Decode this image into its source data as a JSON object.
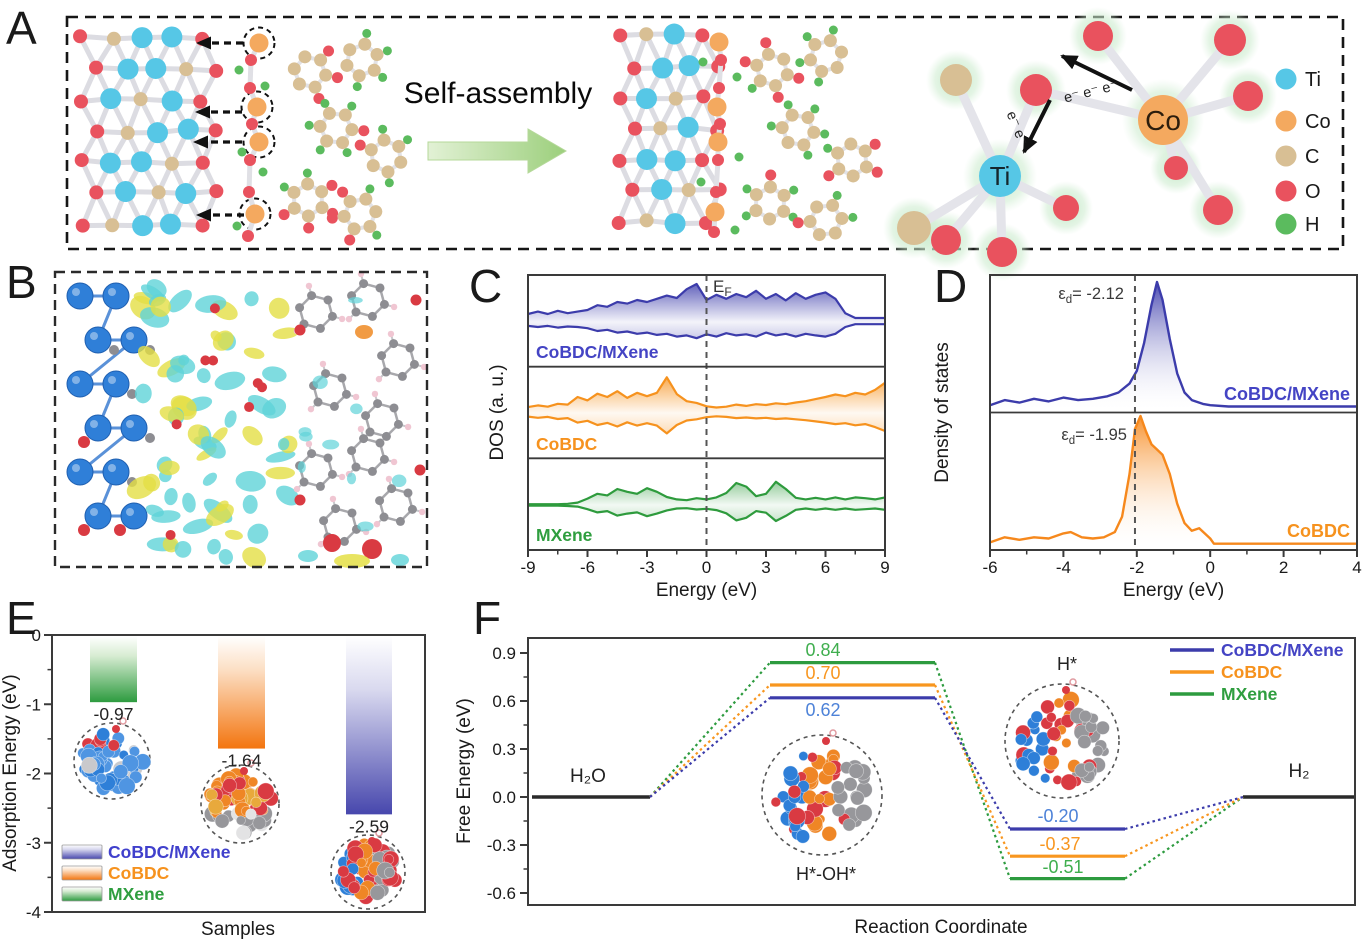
{
  "figure": {
    "panel_labels": {
      "A": "A",
      "B": "B",
      "C": "C",
      "D": "D",
      "E": "E",
      "F": "F"
    }
  },
  "panelA": {
    "self_assembly_label": "Self-assembly",
    "ti_atom_label": "Ti",
    "co_atom_label": "Co",
    "electron_chain_label": "e⁻ e⁻ e⁻",
    "electron_pair_label": "e⁻ e⁻",
    "legend": [
      {
        "symbol": "Ti",
        "color": "#56c7e6"
      },
      {
        "symbol": "Co",
        "color": "#f4a95f"
      },
      {
        "symbol": "C",
        "color": "#d8bf94"
      },
      {
        "symbol": "O",
        "color": "#e9525e"
      },
      {
        "symbol": "H",
        "color": "#5bbb5e"
      }
    ]
  },
  "chart_data": [
    {
      "id": "C",
      "type": "area",
      "panel": "C",
      "title": "Spin-resolved density of states",
      "xlabel": "Energy (eV)",
      "ylabel": "DOS (a. u.)",
      "xlim": [
        -9,
        9
      ],
      "xticks": [
        -9,
        -6,
        -3,
        0,
        3,
        6,
        9
      ],
      "fermi_level_label": {
        "main": "E",
        "sub": "F"
      },
      "series": [
        {
          "name": "CoBDC/MXene",
          "color": "#3c3cab",
          "label_color": "#4444c4",
          "x": [
            -9,
            -8.5,
            -8,
            -7.5,
            -7,
            -6.5,
            -6,
            -5.5,
            -5,
            -4.5,
            -4,
            -3.5,
            -3,
            -2.5,
            -2,
            -1.5,
            -1,
            -0.5,
            0,
            0.5,
            1,
            1.5,
            2,
            2.5,
            3,
            3.5,
            4,
            4.5,
            5,
            5.5,
            6,
            6.5,
            7,
            7.5,
            8,
            8.5,
            9
          ],
          "up": [
            0.2,
            0.26,
            0.2,
            0.28,
            0.22,
            0.26,
            0.3,
            0.42,
            0.38,
            0.5,
            0.46,
            0.55,
            0.5,
            0.58,
            0.66,
            0.6,
            0.82,
            0.95,
            0.55,
            0.68,
            0.58,
            0.7,
            0.62,
            0.78,
            0.58,
            0.7,
            0.54,
            0.72,
            0.58,
            0.68,
            0.74,
            0.58,
            0.22,
            0.1,
            0.1,
            0.1,
            0.1
          ],
          "down": [
            0.14,
            0.18,
            0.14,
            0.2,
            0.16,
            0.18,
            0.22,
            0.32,
            0.28,
            0.38,
            0.34,
            0.42,
            0.38,
            0.46,
            0.42,
            0.52,
            0.48,
            0.58,
            0.44,
            0.52,
            0.4,
            0.48,
            0.44,
            0.52,
            0.38,
            0.48,
            0.42,
            0.52,
            0.42,
            0.48,
            0.52,
            0.42,
            0.18,
            0.08,
            0.08,
            0.08,
            0.08
          ]
        },
        {
          "name": "CoBDC",
          "color": "#f6921e",
          "label_color": "#f6921e",
          "x": [
            -9,
            -8.5,
            -8,
            -7.5,
            -7,
            -6.5,
            -6,
            -5.5,
            -5,
            -4.5,
            -4,
            -3.5,
            -3,
            -2.5,
            -2,
            -1.5,
            -1,
            -0.5,
            0,
            0.5,
            1,
            1.5,
            2,
            2.5,
            3,
            3.5,
            4,
            4.5,
            5,
            5.5,
            6,
            6.5,
            7,
            7.5,
            8,
            8.5,
            9
          ],
          "up": [
            0.14,
            0.18,
            0.15,
            0.22,
            0.2,
            0.38,
            0.3,
            0.46,
            0.38,
            0.52,
            0.36,
            0.48,
            0.4,
            0.48,
            0.85,
            0.45,
            0.28,
            0.24,
            0.16,
            0.13,
            0.15,
            0.2,
            0.17,
            0.21,
            0.19,
            0.23,
            0.21,
            0.25,
            0.28,
            0.33,
            0.38,
            0.44,
            0.4,
            0.48,
            0.44,
            0.55,
            0.72
          ],
          "down": [
            0.12,
            0.16,
            0.13,
            0.2,
            0.17,
            0.32,
            0.26,
            0.4,
            0.33,
            0.45,
            0.31,
            0.42,
            0.34,
            0.42,
            0.68,
            0.4,
            0.25,
            0.21,
            0.14,
            0.11,
            0.13,
            0.17,
            0.15,
            0.18,
            0.16,
            0.2,
            0.18,
            0.21,
            0.24,
            0.28,
            0.32,
            0.37,
            0.34,
            0.41,
            0.37,
            0.47,
            0.6
          ]
        },
        {
          "name": "MXene",
          "color": "#2e9b3d",
          "label_color": "#2f9e3f",
          "x": [
            -9,
            -8.5,
            -8,
            -7.5,
            -7,
            -6.5,
            -6,
            -5.5,
            -5,
            -4.5,
            -4,
            -3.5,
            -3,
            -2.5,
            -2,
            -1.5,
            -1,
            -0.5,
            0,
            0.5,
            1,
            1.5,
            2,
            2.5,
            3,
            3.5,
            4,
            4.5,
            5,
            5.5,
            6,
            6.5,
            7,
            7.5,
            8,
            8.5,
            9
          ],
          "up": [
            0.02,
            0.02,
            0.02,
            0.02,
            0.03,
            0.06,
            0.16,
            0.28,
            0.24,
            0.4,
            0.33,
            0.28,
            0.42,
            0.33,
            0.2,
            0.14,
            0.12,
            0.17,
            0.14,
            0.19,
            0.3,
            0.55,
            0.46,
            0.22,
            0.28,
            0.58,
            0.4,
            0.18,
            0.14,
            0.18,
            0.14,
            0.19,
            0.14,
            0.19,
            0.17,
            0.14,
            0.19
          ],
          "down": [
            0.02,
            0.02,
            0.02,
            0.02,
            0.03,
            0.05,
            0.13,
            0.23,
            0.19,
            0.33,
            0.27,
            0.23,
            0.35,
            0.27,
            0.17,
            0.11,
            0.1,
            0.14,
            0.12,
            0.16,
            0.26,
            0.48,
            0.4,
            0.19,
            0.24,
            0.5,
            0.34,
            0.15,
            0.11,
            0.15,
            0.11,
            0.15,
            0.11,
            0.15,
            0.13,
            0.11,
            0.15
          ]
        }
      ]
    },
    {
      "id": "D",
      "type": "area",
      "panel": "D",
      "title": "d-band density of states",
      "xlabel": "Energy (eV)",
      "ylabel": "Density of states",
      "xlim": [
        -6,
        4
      ],
      "xticks": [
        -6,
        -4,
        -2,
        0,
        2,
        4
      ],
      "dashed_line_x": -2.05,
      "series": [
        {
          "name": "CoBDC/MXene",
          "color": "#3c3cab",
          "label_color": "#4444c4",
          "d_band_center": {
            "epsilon": "ε",
            "sub": "d",
            "text": "= -2.12"
          },
          "x": [
            -6,
            -5.6,
            -5.2,
            -4.8,
            -4.4,
            -4,
            -3.6,
            -3.2,
            -2.8,
            -2.5,
            -2.2,
            -2,
            -1.8,
            -1.6,
            -1.45,
            -1.3,
            -1.1,
            -0.9,
            -0.7,
            -0.5,
            -0.2,
            0,
            0.5,
            1,
            1.5,
            2,
            2.5,
            3,
            3.5,
            4
          ],
          "y": [
            0.03,
            0.07,
            0.05,
            0.08,
            0.06,
            0.09,
            0.07,
            0.08,
            0.1,
            0.13,
            0.2,
            0.3,
            0.52,
            0.82,
            1.0,
            0.86,
            0.55,
            0.28,
            0.13,
            0.07,
            0.04,
            0.03,
            0.02,
            0.02,
            0.02,
            0.02,
            0.02,
            0.02,
            0.02,
            0.02
          ]
        },
        {
          "name": "CoBDC",
          "color": "#f6881c",
          "label_color": "#f6921e",
          "d_band_center": {
            "epsilon": "ε",
            "sub": "d",
            "text": "= -1.95"
          },
          "x": [
            -6,
            -5.6,
            -5.2,
            -4.8,
            -4.4,
            -4,
            -3.8,
            -3.5,
            -3.2,
            -2.9,
            -2.6,
            -2.4,
            -2.2,
            -2.05,
            -1.9,
            -1.75,
            -1.6,
            -1.45,
            -1.3,
            -1.1,
            -0.9,
            -0.7,
            -0.5,
            -0.3,
            -0.15,
            0,
            0.1,
            0.5,
            1,
            2,
            3,
            4
          ],
          "y": [
            0.02,
            0.06,
            0.04,
            0.06,
            0.05,
            0.09,
            0.1,
            0.06,
            0.05,
            0.06,
            0.1,
            0.22,
            0.55,
            0.9,
            1.0,
            0.88,
            0.78,
            0.74,
            0.7,
            0.55,
            0.32,
            0.17,
            0.11,
            0.13,
            0.09,
            0.05,
            0.01,
            0.01,
            0.01,
            0.01,
            0.01,
            0.01
          ]
        }
      ]
    },
    {
      "id": "E",
      "type": "bar",
      "panel": "E",
      "title": "Adsorption energies",
      "xlabel": "Samples",
      "ylabel": "Adsorption Energy (eV)",
      "ylim": [
        -4,
        0
      ],
      "yticks": [
        0,
        -1,
        -2,
        -3,
        -4
      ],
      "bars": [
        {
          "name": "MXene",
          "value": -0.97,
          "label": "-0.97",
          "color": "#2d9b3f"
        },
        {
          "name": "CoBDC",
          "value": -1.64,
          "label": "-1.64",
          "color": "#f3750f"
        },
        {
          "name": "CoBDC/MXene",
          "value": -2.59,
          "label": "-2.59",
          "color": "#4747ad"
        }
      ],
      "legend": [
        {
          "name": "CoBDC/MXene",
          "color": "#4747ad",
          "text_color": "#4040cc"
        },
        {
          "name": "CoBDC",
          "color": "#f3750f",
          "text_color": "#f6921e"
        },
        {
          "name": "MXene",
          "color": "#2d9b3f",
          "text_color": "#2f9e3f"
        }
      ]
    },
    {
      "id": "F",
      "type": "line",
      "panel": "F",
      "title": "Free energy diagram of water dissociation",
      "xlabel": "Reaction Coordinate",
      "ylabel": "Free Energy (eV)",
      "ylim": [
        -0.75,
        1.05
      ],
      "yticks": [
        "0.9",
        "0.6",
        "0.3",
        "0.0",
        "-0.3",
        "-0.6"
      ],
      "stages": [
        "H₂O",
        "H*-OH*",
        "H*",
        "H₂"
      ],
      "series": [
        {
          "name": "CoBDC/MXene",
          "color": "#3c3cab",
          "values": [
            0,
            0.62,
            -0.2,
            0
          ],
          "barrier_label": "0.62",
          "final_label": "-0.20",
          "value_label_color": "#4d82d8"
        },
        {
          "name": "CoBDC",
          "color": "#f8961f",
          "values": [
            0,
            0.7,
            -0.37,
            0
          ],
          "barrier_label": "0.70",
          "final_label": "-0.37",
          "value_label_color": "#f8961f"
        },
        {
          "name": "MXene",
          "color": "#2d9b3f",
          "values": [
            0,
            0.84,
            -0.51,
            0
          ],
          "barrier_label": "0.84",
          "final_label": "-0.51",
          "value_label_color": "#3fae4e"
        }
      ],
      "legend": [
        {
          "name": "CoBDC/MXene",
          "text_color": "#4444c4"
        },
        {
          "name": "CoBDC",
          "text_color": "#f6921e"
        },
        {
          "name": "MXene",
          "text_color": "#2f9e3f"
        }
      ],
      "labels": {
        "start": "H₂O",
        "mid": "H*-OH*",
        "top": "H*",
        "end": "H₂"
      }
    }
  ]
}
